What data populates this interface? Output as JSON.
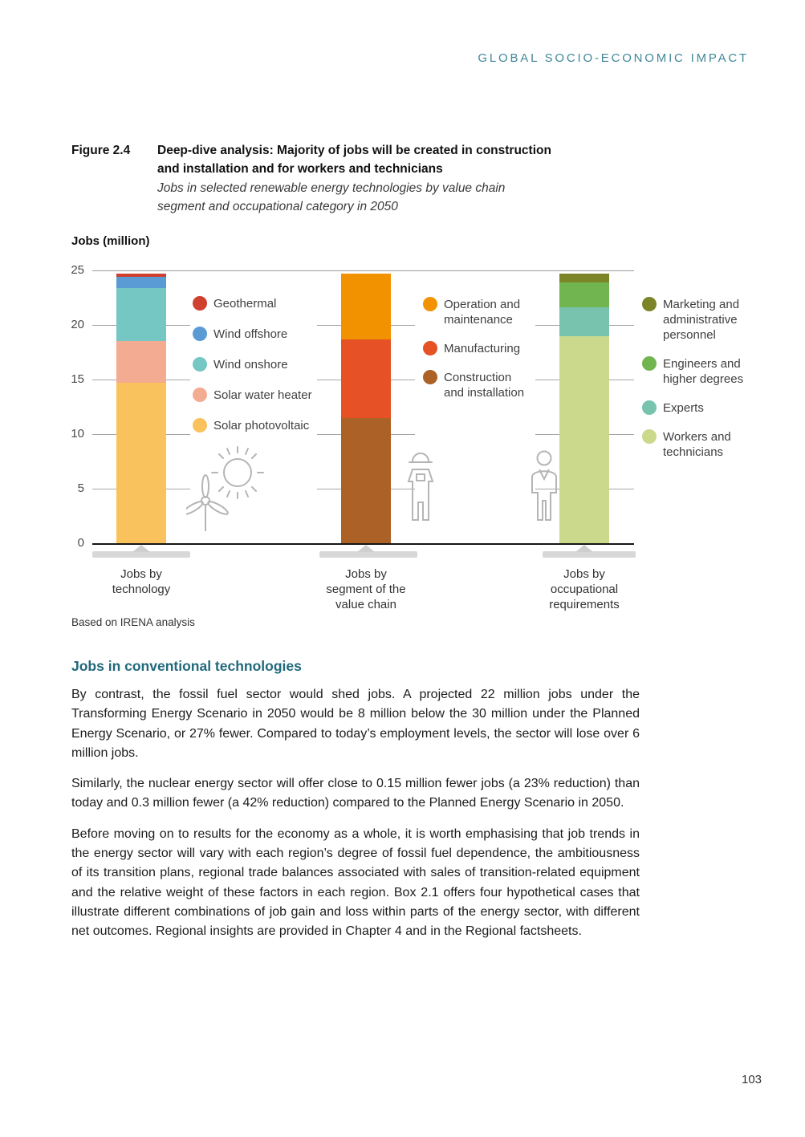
{
  "page": {
    "header": "GLOBAL SOCIO-ECONOMIC IMPACT",
    "page_number": "103"
  },
  "figure": {
    "label": "Figure 2.4",
    "title": "Deep-dive analysis: Majority of jobs will be created in construction\nand installation and for workers and technicians",
    "subtitle": "Jobs in selected renewable energy technologies by value chain\nsegment and occupational category in 2050",
    "source": "Based on IRENA analysis"
  },
  "chart_data": {
    "type": "bar",
    "stacked": true,
    "title": "Jobs (million)",
    "ylabel": "Jobs (million)",
    "ylim": [
      0,
      25
    ],
    "yticks": [
      0,
      5,
      10,
      15,
      20,
      25
    ],
    "grid_ticks": [
      5,
      10,
      15,
      20
    ],
    "legend_position": "right of each bar",
    "categories": [
      "Jobs by\ntechnology",
      "Jobs by\nsegment of the\nvalue chain",
      "Jobs by\noccupational\nrequirements"
    ],
    "bars": [
      {
        "category": "Jobs by technology",
        "total": 24.7,
        "segments": [
          {
            "name": "Solar photovoltaic",
            "value": 14.7,
            "color": "#F9C25C"
          },
          {
            "name": "Solar water heater",
            "value": 3.8,
            "color": "#F3AB92"
          },
          {
            "name": "Wind onshore",
            "value": 4.9,
            "color": "#74C7C3"
          },
          {
            "name": "Wind offshore",
            "value": 1.0,
            "color": "#5B9BD5"
          },
          {
            "name": "Geothermal",
            "value": 0.3,
            "color": "#D0402F"
          }
        ]
      },
      {
        "category": "Jobs by segment of the value chain",
        "total": 24.7,
        "segments": [
          {
            "name": "Construction and installation",
            "value": 11.5,
            "color": "#AC6127"
          },
          {
            "name": "Manufacturing",
            "value": 7.2,
            "color": "#E65125"
          },
          {
            "name": "Operation and maintenance",
            "value": 6.0,
            "color": "#F39200"
          }
        ]
      },
      {
        "category": "Jobs by occupational requirements",
        "total": 24.7,
        "segments": [
          {
            "name": "Workers and technicians",
            "value": 19.0,
            "color": "#CBD98C"
          },
          {
            "name": "Experts",
            "value": 2.6,
            "color": "#77C3AD"
          },
          {
            "name": "Engineers and higher degrees",
            "value": 2.3,
            "color": "#70B54F"
          },
          {
            "name": "Marketing and administrative personnel",
            "value": 0.8,
            "color": "#7C8428"
          }
        ]
      }
    ]
  },
  "legends": [
    {
      "name": "technology",
      "items": [
        {
          "label": "Geothermal",
          "color": "#D0402F"
        },
        {
          "label": "Wind offshore",
          "color": "#5B9BD5"
        },
        {
          "label": "Wind onshore",
          "color": "#74C7C3"
        },
        {
          "label": "Solar water heater",
          "color": "#F3AB92"
        },
        {
          "label": "Solar photovoltaic",
          "color": "#F9C25C"
        }
      ]
    },
    {
      "name": "value-chain",
      "items": [
        {
          "label": "Operation and\nmaintenance",
          "color": "#F39200"
        },
        {
          "label": "Manufacturing",
          "color": "#E65125"
        },
        {
          "label": "Construction\nand installation",
          "color": "#AC6127"
        }
      ]
    },
    {
      "name": "occupation",
      "items": [
        {
          "label": "Marketing and\nadministrative\npersonnel",
          "color": "#7C8428"
        },
        {
          "label": "Engineers and\nhigher degrees",
          "color": "#70B54F"
        },
        {
          "label": "Experts",
          "color": "#77C3AD"
        },
        {
          "label": "Workers and\ntechnicians",
          "color": "#CBD98C"
        }
      ]
    }
  ],
  "body": {
    "heading": "Jobs in conventional technologies",
    "paragraphs": [
      "By contrast, the fossil fuel sector would shed jobs.  A projected 22 million jobs under the Transforming Energy Scenario in 2050 would be 8 million below the 30 million under the Planned Energy Scenario, or 27% fewer. Compared to today’s employment levels, the sector will lose over 6 million jobs.",
      "Similarly, the nuclear energy sector will offer close to 0.15 million fewer jobs (a 23% reduction) than today and 0.3 million fewer (a 42% reduction) compared to the Planned Energy Scenario in 2050.",
      "Before moving on to results for the economy as a whole, it is worth emphasising that job trends in the energy sector will vary with each region’s degree of fossil fuel dependence, the ambitiousness of its transition plans, regional trade balances associated with sales of transition-related equipment and the relative weight of these factors in each region. Box 2.1 offers four hypothetical cases that illustrate different combinations of job gain and loss within parts of the energy sector, with different net outcomes. Regional insights are provided in Chapter 4 and in the Regional factsheets."
    ]
  },
  "colors": {
    "header_teal": "#41879A",
    "heading_teal": "#21697B",
    "grid_gray": "#a6a6a6",
    "pedestal_gray": "#d8d8d8",
    "icon_gray": "#b5b5b5"
  }
}
